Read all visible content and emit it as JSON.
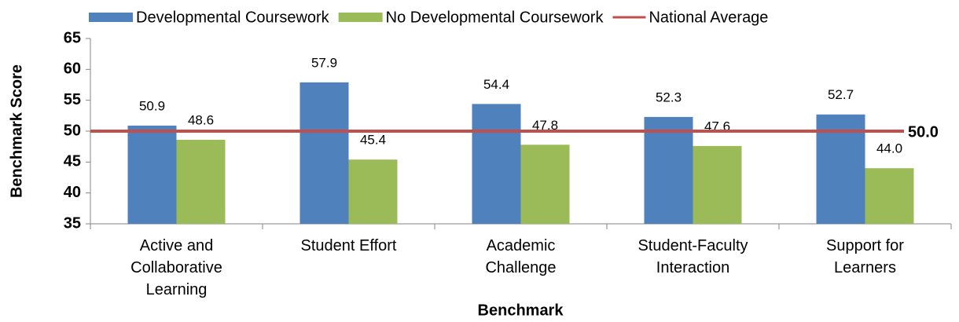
{
  "chart_data": {
    "type": "bar",
    "categories": [
      "Active and Collaborative Learning",
      "Student Effort",
      "Academic Challenge",
      "Student-Faculty Interaction",
      "Support for Learners"
    ],
    "series": [
      {
        "name": "Developmental Coursework",
        "color": "#4f81bd",
        "values": [
          50.9,
          57.9,
          54.4,
          52.3,
          52.7
        ],
        "value_labels": [
          "50.9",
          "57.9",
          "54.4",
          "52.3",
          "52.7"
        ]
      },
      {
        "name": "No Developmental Coursework",
        "color": "#9bbb59",
        "values": [
          48.6,
          45.4,
          47.8,
          47.6,
          44.0
        ],
        "value_labels": [
          "48.6",
          "45.4",
          "47.8",
          "47.6",
          "44.0"
        ]
      }
    ],
    "reference_line": {
      "name": "National Average",
      "color": "#c0504d",
      "value": 50.0,
      "value_label": "50.0"
    },
    "ylim": [
      35,
      65
    ],
    "yticks": [
      35,
      40,
      45,
      50,
      55,
      60,
      65
    ],
    "ylabel": "Benchmark Score",
    "xlabel": "Benchmark",
    "grid": false
  }
}
